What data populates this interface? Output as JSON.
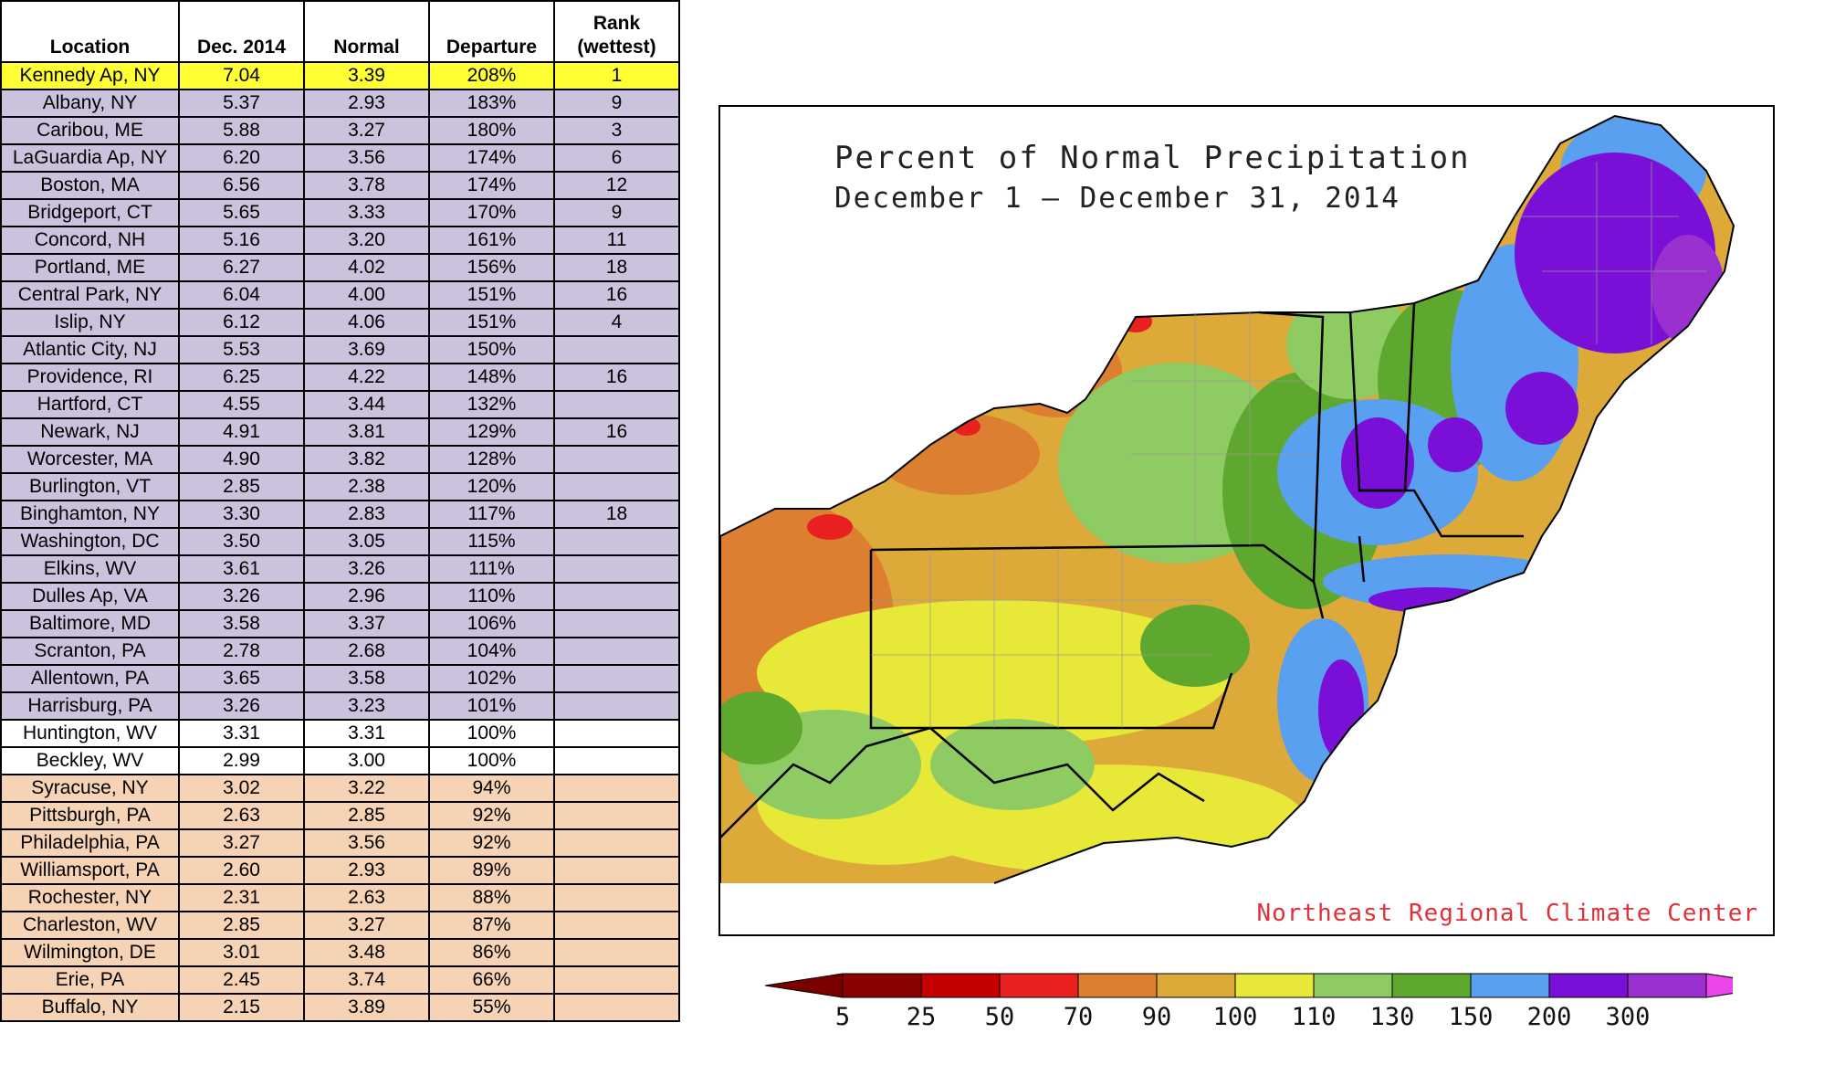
{
  "table": {
    "headers": {
      "location": "Location",
      "dec": "Dec. 2014",
      "normal": "Normal",
      "departure": "Departure",
      "rank_line1": "Rank",
      "rank_line2": "(wettest)"
    },
    "group_colors": {
      "top": "#ffff33",
      "above": "#cbc3dd",
      "normal": "#ffffff",
      "below": "#f6d3b4"
    },
    "rows": [
      {
        "location": "Kennedy Ap, NY",
        "dec": "7.04",
        "normal": "3.39",
        "departure": "208%",
        "rank": "1",
        "group": "top"
      },
      {
        "location": "Albany, NY",
        "dec": "5.37",
        "normal": "2.93",
        "departure": "183%",
        "rank": "9",
        "group": "above"
      },
      {
        "location": "Caribou, ME",
        "dec": "5.88",
        "normal": "3.27",
        "departure": "180%",
        "rank": "3",
        "group": "above"
      },
      {
        "location": "LaGuardia Ap, NY",
        "dec": "6.20",
        "normal": "3.56",
        "departure": "174%",
        "rank": "6",
        "group": "above"
      },
      {
        "location": "Boston, MA",
        "dec": "6.56",
        "normal": "3.78",
        "departure": "174%",
        "rank": "12",
        "group": "above"
      },
      {
        "location": "Bridgeport, CT",
        "dec": "5.65",
        "normal": "3.33",
        "departure": "170%",
        "rank": "9",
        "group": "above"
      },
      {
        "location": "Concord, NH",
        "dec": "5.16",
        "normal": "3.20",
        "departure": "161%",
        "rank": "11",
        "group": "above"
      },
      {
        "location": "Portland, ME",
        "dec": "6.27",
        "normal": "4.02",
        "departure": "156%",
        "rank": "18",
        "group": "above"
      },
      {
        "location": "Central Park, NY",
        "dec": "6.04",
        "normal": "4.00",
        "departure": "151%",
        "rank": "16",
        "group": "above"
      },
      {
        "location": "Islip, NY",
        "dec": "6.12",
        "normal": "4.06",
        "departure": "151%",
        "rank": "4",
        "group": "above"
      },
      {
        "location": "Atlantic City, NJ",
        "dec": "5.53",
        "normal": "3.69",
        "departure": "150%",
        "rank": "",
        "group": "above"
      },
      {
        "location": "Providence, RI",
        "dec": "6.25",
        "normal": "4.22",
        "departure": "148%",
        "rank": "16",
        "group": "above"
      },
      {
        "location": "Hartford, CT",
        "dec": "4.55",
        "normal": "3.44",
        "departure": "132%",
        "rank": "",
        "group": "above"
      },
      {
        "location": "Newark, NJ",
        "dec": "4.91",
        "normal": "3.81",
        "departure": "129%",
        "rank": "16",
        "group": "above"
      },
      {
        "location": "Worcester, MA",
        "dec": "4.90",
        "normal": "3.82",
        "departure": "128%",
        "rank": "",
        "group": "above"
      },
      {
        "location": "Burlington, VT",
        "dec": "2.85",
        "normal": "2.38",
        "departure": "120%",
        "rank": "",
        "group": "above"
      },
      {
        "location": "Binghamton, NY",
        "dec": "3.30",
        "normal": "2.83",
        "departure": "117%",
        "rank": "18",
        "group": "above"
      },
      {
        "location": "Washington, DC",
        "dec": "3.50",
        "normal": "3.05",
        "departure": "115%",
        "rank": "",
        "group": "above"
      },
      {
        "location": "Elkins, WV",
        "dec": "3.61",
        "normal": "3.26",
        "departure": "111%",
        "rank": "",
        "group": "above"
      },
      {
        "location": "Dulles Ap, VA",
        "dec": "3.26",
        "normal": "2.96",
        "departure": "110%",
        "rank": "",
        "group": "above"
      },
      {
        "location": "Baltimore, MD",
        "dec": "3.58",
        "normal": "3.37",
        "departure": "106%",
        "rank": "",
        "group": "above"
      },
      {
        "location": "Scranton, PA",
        "dec": "2.78",
        "normal": "2.68",
        "departure": "104%",
        "rank": "",
        "group": "above"
      },
      {
        "location": "Allentown, PA",
        "dec": "3.65",
        "normal": "3.58",
        "departure": "102%",
        "rank": "",
        "group": "above"
      },
      {
        "location": "Harrisburg, PA",
        "dec": "3.26",
        "normal": "3.23",
        "departure": "101%",
        "rank": "",
        "group": "above"
      },
      {
        "location": "Huntington, WV",
        "dec": "3.31",
        "normal": "3.31",
        "departure": "100%",
        "rank": "",
        "group": "normal"
      },
      {
        "location": "Beckley, WV",
        "dec": "2.99",
        "normal": "3.00",
        "departure": "100%",
        "rank": "",
        "group": "normal"
      },
      {
        "location": "Syracuse, NY",
        "dec": "3.02",
        "normal": "3.22",
        "departure": "94%",
        "rank": "",
        "group": "below"
      },
      {
        "location": "Pittsburgh, PA",
        "dec": "2.63",
        "normal": "2.85",
        "departure": "92%",
        "rank": "",
        "group": "below"
      },
      {
        "location": "Philadelphia, PA",
        "dec": "3.27",
        "normal": "3.56",
        "departure": "92%",
        "rank": "",
        "group": "below"
      },
      {
        "location": "Williamsport, PA",
        "dec": "2.60",
        "normal": "2.93",
        "departure": "89%",
        "rank": "",
        "group": "below"
      },
      {
        "location": "Rochester, NY",
        "dec": "2.31",
        "normal": "2.63",
        "departure": "88%",
        "rank": "",
        "group": "below"
      },
      {
        "location": "Charleston, WV",
        "dec": "2.85",
        "normal": "3.27",
        "departure": "87%",
        "rank": "",
        "group": "below"
      },
      {
        "location": "Wilmington, DE",
        "dec": "3.01",
        "normal": "3.48",
        "departure": "86%",
        "rank": "",
        "group": "below"
      },
      {
        "location": "Erie, PA",
        "dec": "2.45",
        "normal": "3.74",
        "departure": "66%",
        "rank": "",
        "group": "below"
      },
      {
        "location": "Buffalo, NY",
        "dec": "2.15",
        "normal": "3.89",
        "departure": "55%",
        "rank": "",
        "group": "below"
      }
    ]
  },
  "map": {
    "title_line1": "Percent of Normal Precipitation",
    "title_line2": "December 1 – December 31, 2014",
    "credit": "Northeast Regional Climate Center"
  },
  "legend": {
    "labels": [
      "5",
      "25",
      "50",
      "70",
      "90",
      "100",
      "110",
      "130",
      "150",
      "200",
      "300"
    ],
    "colors": [
      "#8b0000",
      "#c40000",
      "#e82020",
      "#dd7f30",
      "#ddaa3a",
      "#e8e838",
      "#8fcb63",
      "#5fa830",
      "#5aa0f0",
      "#7a10d8",
      "#9b30d0"
    ],
    "low_arrow_color": "#7a0000",
    "high_arrow_color": "#ee44ee"
  },
  "chart_data": {
    "type": "table",
    "title": "",
    "columns": [
      "Location",
      "Dec. 2014",
      "Normal",
      "Departure",
      "Rank (wettest)"
    ],
    "rows": [
      [
        "Kennedy Ap, NY",
        7.04,
        3.39,
        "208%",
        1
      ],
      [
        "Albany, NY",
        5.37,
        2.93,
        "183%",
        9
      ],
      [
        "Caribou, ME",
        5.88,
        3.27,
        "180%",
        3
      ],
      [
        "LaGuardia Ap, NY",
        6.2,
        3.56,
        "174%",
        6
      ],
      [
        "Boston, MA",
        6.56,
        3.78,
        "174%",
        12
      ],
      [
        "Bridgeport, CT",
        5.65,
        3.33,
        "170%",
        9
      ],
      [
        "Concord, NH",
        5.16,
        3.2,
        "161%",
        11
      ],
      [
        "Portland, ME",
        6.27,
        4.02,
        "156%",
        18
      ],
      [
        "Central Park, NY",
        6.04,
        4.0,
        "151%",
        16
      ],
      [
        "Islip, NY",
        6.12,
        4.06,
        "151%",
        4
      ],
      [
        "Atlantic City, NJ",
        5.53,
        3.69,
        "150%",
        null
      ],
      [
        "Providence, RI",
        6.25,
        4.22,
        "148%",
        16
      ],
      [
        "Hartford, CT",
        4.55,
        3.44,
        "132%",
        null
      ],
      [
        "Newark, NJ",
        4.91,
        3.81,
        "129%",
        16
      ],
      [
        "Worcester, MA",
        4.9,
        3.82,
        "128%",
        null
      ],
      [
        "Burlington, VT",
        2.85,
        2.38,
        "120%",
        null
      ],
      [
        "Binghamton, NY",
        3.3,
        2.83,
        "117%",
        18
      ],
      [
        "Washington, DC",
        3.5,
        3.05,
        "115%",
        null
      ],
      [
        "Elkins, WV",
        3.61,
        3.26,
        "111%",
        null
      ],
      [
        "Dulles Ap, VA",
        3.26,
        2.96,
        "110%",
        null
      ],
      [
        "Baltimore, MD",
        3.58,
        3.37,
        "106%",
        null
      ],
      [
        "Scranton, PA",
        2.78,
        2.68,
        "104%",
        null
      ],
      [
        "Allentown, PA",
        3.65,
        3.58,
        "102%",
        null
      ],
      [
        "Harrisburg, PA",
        3.26,
        3.23,
        "101%",
        null
      ],
      [
        "Huntington, WV",
        3.31,
        3.31,
        "100%",
        null
      ],
      [
        "Beckley, WV",
        2.99,
        3.0,
        "100%",
        null
      ],
      [
        "Syracuse, NY",
        3.02,
        3.22,
        "94%",
        null
      ],
      [
        "Pittsburgh, PA",
        2.63,
        2.85,
        "92%",
        null
      ],
      [
        "Philadelphia, PA",
        3.27,
        3.56,
        "92%",
        null
      ],
      [
        "Williamsport, PA",
        2.6,
        2.93,
        "89%",
        null
      ],
      [
        "Rochester, NY",
        2.31,
        2.63,
        "88%",
        null
      ],
      [
        "Charleston, WV",
        2.85,
        3.27,
        "87%",
        null
      ],
      [
        "Wilmington, DE",
        3.01,
        3.48,
        "86%",
        null
      ],
      [
        "Erie, PA",
        2.45,
        3.74,
        "66%",
        null
      ],
      [
        "Buffalo, NY",
        2.15,
        3.89,
        "55%",
        null
      ]
    ]
  }
}
